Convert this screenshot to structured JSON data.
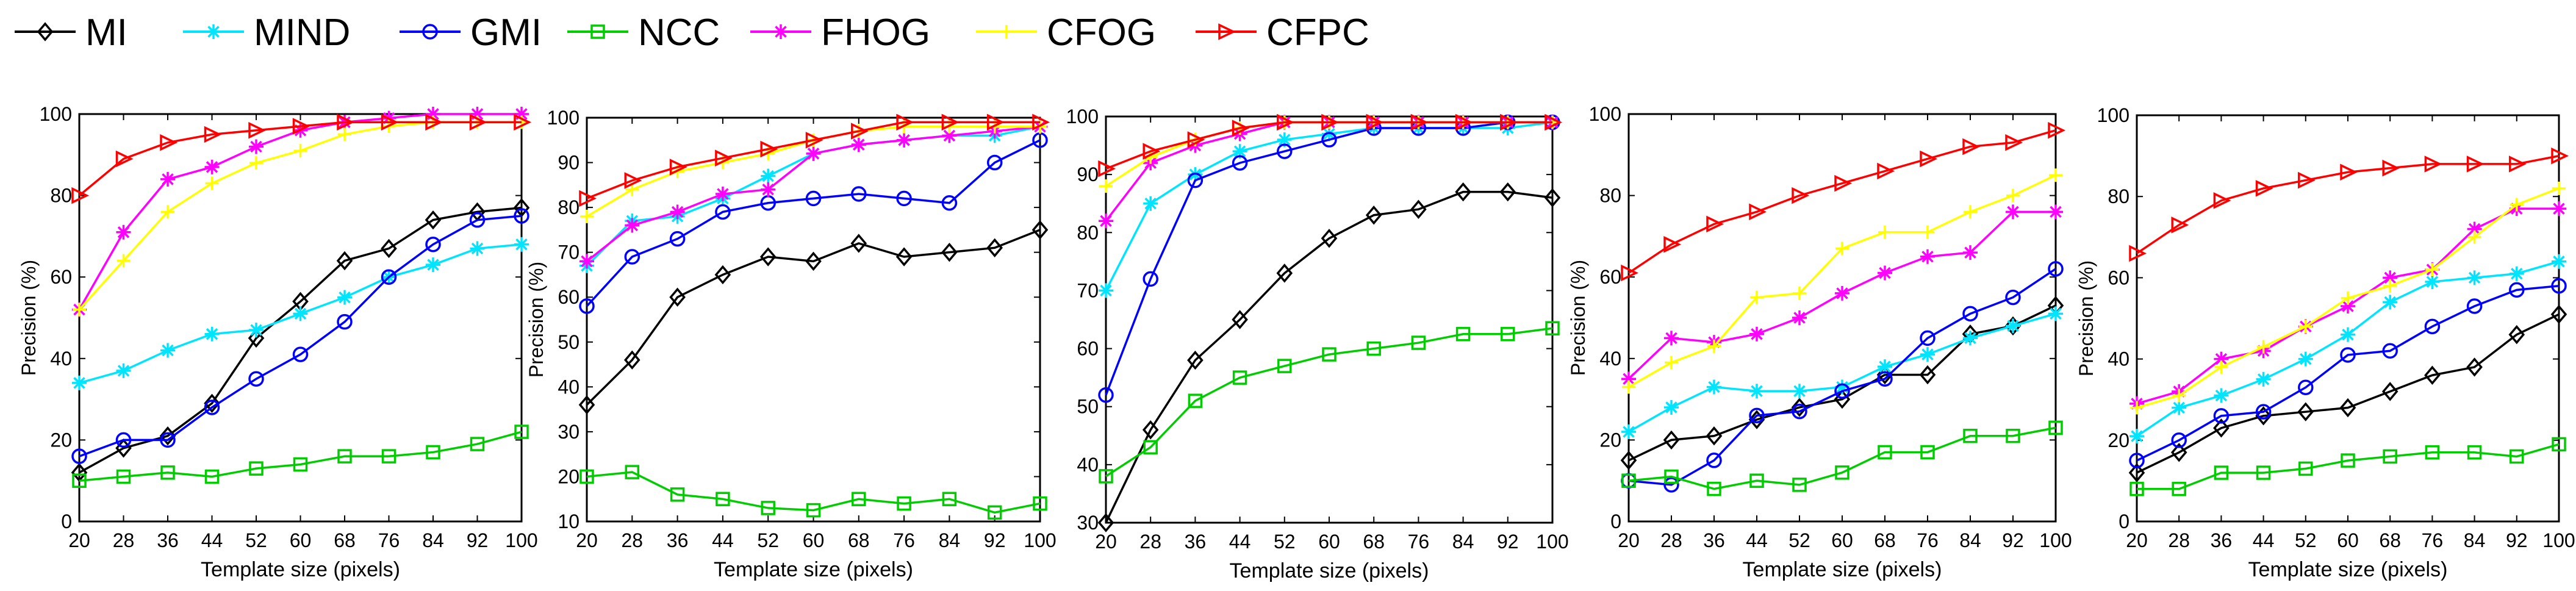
{
  "legend": [
    {
      "name": "MI",
      "color": "#000000",
      "marker": "diamond"
    },
    {
      "name": "MIND",
      "color": "#00e5ff",
      "marker": "star"
    },
    {
      "name": "GMI",
      "color": "#0000ff",
      "marker": "circle"
    },
    {
      "name": "NCC",
      "color": "#00cc00",
      "marker": "square"
    },
    {
      "name": "FHOG",
      "color": "#ff00ff",
      "marker": "star"
    },
    {
      "name": "CFOG",
      "color": "#ffff00",
      "marker": "plus"
    },
    {
      "name": "CFPC",
      "color": "#ff0000",
      "marker": "triangle-right"
    }
  ],
  "chart_data": [
    {
      "type": "line",
      "title": "",
      "xlabel": "Template size (pixels)",
      "ylabel": "Precision (%)",
      "x": [
        20,
        28,
        36,
        44,
        52,
        60,
        68,
        76,
        84,
        92,
        100
      ],
      "xticks": [
        "20",
        "28",
        "36",
        "44",
        "52",
        "60",
        "68",
        "76",
        "84",
        "92",
        "100"
      ],
      "yticks": [
        "0",
        "20",
        "40",
        "60",
        "80",
        "100"
      ],
      "ylim": [
        0,
        100
      ],
      "series": [
        {
          "name": "MI",
          "values": [
            12,
            18,
            21,
            29,
            45,
            54,
            64,
            67,
            74,
            76,
            77
          ]
        },
        {
          "name": "MIND",
          "values": [
            34,
            37,
            42,
            46,
            47,
            51,
            55,
            60,
            63,
            67,
            68
          ]
        },
        {
          "name": "GMI",
          "values": [
            16,
            20,
            20,
            28,
            35,
            41,
            49,
            60,
            68,
            74,
            75
          ]
        },
        {
          "name": "NCC",
          "values": [
            10,
            11,
            12,
            11,
            13,
            14,
            16,
            16,
            17,
            19,
            22
          ]
        },
        {
          "name": "FHOG",
          "values": [
            52,
            71,
            84,
            87,
            92,
            96,
            98,
            99,
            100,
            100,
            100
          ]
        },
        {
          "name": "CFOG",
          "values": [
            52,
            64,
            76,
            83,
            88,
            91,
            95,
            97,
            98,
            98,
            98
          ]
        },
        {
          "name": "CFPC",
          "values": [
            80,
            89,
            93,
            95,
            96,
            97,
            98,
            98,
            98,
            98,
            98
          ]
        }
      ]
    },
    {
      "type": "line",
      "title": "",
      "xlabel": "Template size (pixels)",
      "ylabel": "Precision (%)",
      "x": [
        20,
        28,
        36,
        44,
        52,
        60,
        68,
        76,
        84,
        92,
        100
      ],
      "xticks": [
        "20",
        "28",
        "36",
        "44",
        "52",
        "60",
        "68",
        "76",
        "84",
        "92",
        "100"
      ],
      "yticks": [
        "10",
        "20",
        "30",
        "40",
        "50",
        "60",
        "70",
        "80",
        "90",
        "100"
      ],
      "ylim": [
        10,
        100
      ],
      "series": [
        {
          "name": "MI",
          "values": [
            36,
            46,
            60,
            65,
            69,
            68,
            72,
            69,
            70,
            71,
            75
          ]
        },
        {
          "name": "MIND",
          "values": [
            67,
            77,
            78,
            82,
            87,
            92,
            94,
            95,
            96,
            96,
            98
          ]
        },
        {
          "name": "GMI",
          "values": [
            58,
            69,
            73,
            79,
            81,
            82,
            83,
            82,
            81,
            90,
            95
          ]
        },
        {
          "name": "NCC",
          "values": [
            20,
            21,
            16,
            15,
            13,
            12.5,
            15,
            14,
            15,
            12,
            14
          ]
        },
        {
          "name": "FHOG",
          "values": [
            68,
            76,
            79,
            83,
            84,
            92,
            94,
            95,
            96,
            97,
            98
          ]
        },
        {
          "name": "CFOG",
          "values": [
            78,
            84,
            88,
            90,
            92,
            95,
            97,
            98,
            98,
            98,
            98
          ]
        },
        {
          "name": "CFPC",
          "values": [
            82,
            86,
            89,
            91,
            93,
            95,
            97,
            99,
            99,
            99,
            99
          ]
        }
      ]
    },
    {
      "type": "line",
      "title": "",
      "xlabel": "Template size (pixels)",
      "ylabel": "",
      "x": [
        20,
        28,
        36,
        44,
        52,
        60,
        68,
        76,
        84,
        92,
        100
      ],
      "xticks": [
        "20",
        "28",
        "36",
        "44",
        "52",
        "60",
        "68",
        "76",
        "84",
        "92",
        "100"
      ],
      "yticks": [
        "30",
        "40",
        "50",
        "60",
        "70",
        "80",
        "90",
        "100"
      ],
      "ylim": [
        30,
        100
      ],
      "series": [
        {
          "name": "MI",
          "values": [
            30,
            46,
            58,
            65,
            73,
            79,
            83,
            84,
            87,
            87,
            86
          ]
        },
        {
          "name": "MIND",
          "values": [
            70,
            85,
            90,
            94,
            96,
            97,
            98,
            98,
            98,
            98,
            99
          ]
        },
        {
          "name": "GMI",
          "values": [
            52,
            72,
            89,
            92,
            94,
            96,
            98,
            98,
            98,
            99,
            99
          ]
        },
        {
          "name": "NCC",
          "values": [
            38,
            43,
            51,
            55,
            57,
            59,
            60,
            61,
            62.5,
            62.5,
            63.5
          ]
        },
        {
          "name": "FHOG",
          "values": [
            82,
            92,
            95,
            97,
            99,
            99,
            99,
            99,
            99,
            99,
            99
          ]
        },
        {
          "name": "CFOG",
          "values": [
            88,
            93,
            96,
            98,
            99,
            99,
            99,
            99,
            99,
            99,
            99
          ]
        },
        {
          "name": "CFPC",
          "values": [
            91,
            94,
            96,
            98,
            99,
            99,
            99,
            99,
            99,
            99,
            99
          ]
        }
      ]
    },
    {
      "type": "line",
      "title": "",
      "xlabel": "Template size (pixels)",
      "ylabel": "Precision (%)",
      "x": [
        20,
        28,
        36,
        44,
        52,
        60,
        68,
        76,
        84,
        92,
        100
      ],
      "xticks": [
        "20",
        "28",
        "36",
        "44",
        "52",
        "60",
        "68",
        "76",
        "84",
        "92",
        "100"
      ],
      "yticks": [
        "0",
        "20",
        "40",
        "60",
        "80",
        "100"
      ],
      "ylim": [
        0,
        100
      ],
      "series": [
        {
          "name": "MI",
          "values": [
            15,
            20,
            21,
            25,
            28,
            30,
            36,
            36,
            46,
            48,
            53
          ]
        },
        {
          "name": "MIND",
          "values": [
            22,
            28,
            33,
            32,
            32,
            33,
            38,
            41,
            45,
            48,
            51
          ]
        },
        {
          "name": "GMI",
          "values": [
            10,
            9,
            15,
            26,
            27,
            32,
            35,
            45,
            51,
            55,
            62
          ]
        },
        {
          "name": "NCC",
          "values": [
            10,
            11,
            8,
            10,
            9,
            12,
            17,
            17,
            21,
            21,
            23
          ]
        },
        {
          "name": "FHOG",
          "values": [
            35,
            45,
            44,
            46,
            50,
            56,
            61,
            65,
            66,
            76,
            76
          ]
        },
        {
          "name": "CFOG",
          "values": [
            33,
            39,
            43,
            55,
            56,
            67,
            71,
            71,
            76,
            80,
            85
          ]
        },
        {
          "name": "CFPC",
          "values": [
            61,
            68,
            73,
            76,
            80,
            83,
            86,
            89,
            92,
            93,
            96
          ]
        }
      ]
    },
    {
      "type": "line",
      "title": "",
      "xlabel": "Template size (pixels)",
      "ylabel": "Precision (%)",
      "x": [
        20,
        28,
        36,
        44,
        52,
        60,
        68,
        76,
        84,
        92,
        100
      ],
      "xticks": [
        "20",
        "28",
        "36",
        "44",
        "52",
        "60",
        "68",
        "76",
        "84",
        "92",
        "100"
      ],
      "yticks": [
        "0",
        "20",
        "40",
        "60",
        "80",
        "100"
      ],
      "ylim": [
        0,
        100
      ],
      "series": [
        {
          "name": "MI",
          "values": [
            12,
            17,
            23,
            26,
            27,
            28,
            32,
            36,
            38,
            46,
            51
          ]
        },
        {
          "name": "MIND",
          "values": [
            21,
            28,
            31,
            35,
            40,
            46,
            54,
            59,
            60,
            61,
            64
          ]
        },
        {
          "name": "GMI",
          "values": [
            15,
            20,
            26,
            27,
            33,
            41,
            42,
            48,
            53,
            57,
            58
          ]
        },
        {
          "name": "NCC",
          "values": [
            8,
            8,
            12,
            12,
            13,
            15,
            16,
            17,
            17,
            16,
            19
          ]
        },
        {
          "name": "FHOG",
          "values": [
            29,
            32,
            40,
            42,
            48,
            53,
            60,
            62,
            72,
            77,
            77
          ]
        },
        {
          "name": "CFOG",
          "values": [
            28,
            31,
            38,
            43,
            48,
            55,
            58,
            62,
            70,
            78,
            82
          ]
        },
        {
          "name": "CFPC",
          "values": [
            66,
            73,
            79,
            82,
            84,
            86,
            87,
            88,
            88,
            88,
            90
          ]
        }
      ]
    }
  ]
}
